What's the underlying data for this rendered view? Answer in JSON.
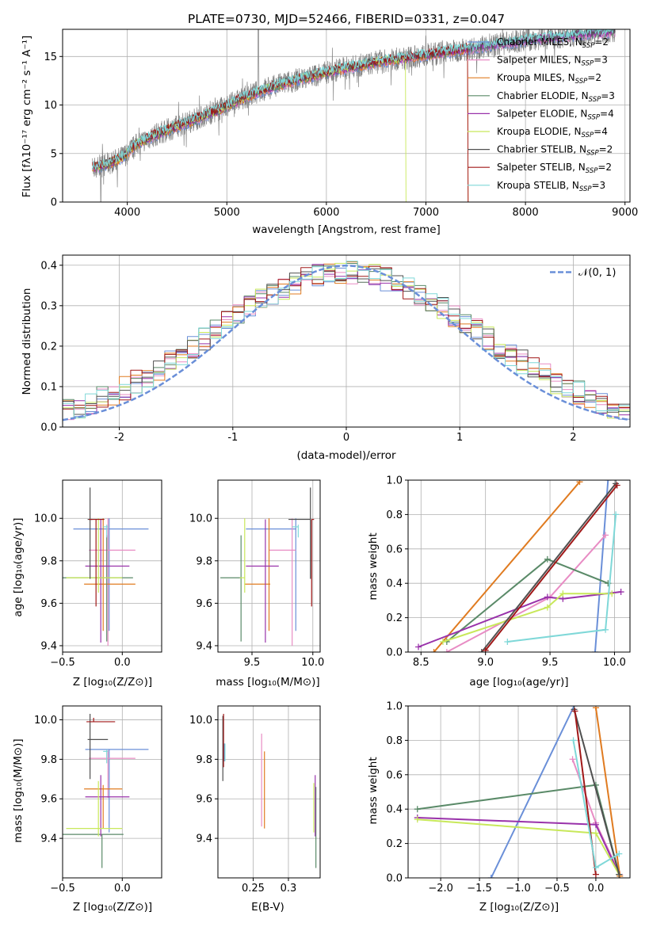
{
  "panels": {
    "spectrum": {
      "title": "PLATE=0730, MJD=52466, FIBERID=0331, z=0.047",
      "xlabel": "wavelength [Angstrom, rest frame]",
      "ylabel": "Flux [fλ10⁻¹⁷ erg cm⁻² s⁻¹ A⁻¹]",
      "xlim": [
        3350,
        9050
      ],
      "ylim": [
        0,
        17.8
      ],
      "xticks": [
        4000,
        5000,
        6000,
        7000,
        8000,
        9000
      ],
      "yticks": [
        0,
        5,
        10,
        15
      ]
    },
    "residuals": {
      "xlabel": "(data-model)/error",
      "ylabel": "Normed distribution",
      "xlim": [
        -2.5,
        2.5
      ],
      "ylim": [
        0,
        0.425
      ],
      "xticks": [
        -2,
        -1,
        0,
        1,
        2
      ],
      "yticks": [
        0.0,
        0.1,
        0.2,
        0.3,
        0.4
      ],
      "normal_label": "𝒩(0, 1)"
    },
    "age_vs_Z": {
      "xlabel": "Z [log₁₀(Z/Z⊙)]",
      "ylabel": "age  [log₁₀(age/yr)]"
    },
    "age_vs_mass": {
      "xlabel": "mass [log₁₀(M/M⊙)]"
    },
    "weight_vs_age": {
      "xlabel": "age  [log₁₀(age/yr)]",
      "ylabel": "mass weight"
    },
    "mass_vs_Z": {
      "xlabel": "Z [log₁₀(Z/Z⊙)]",
      "ylabel": "mass [log₁₀(M/M⊙)]"
    },
    "mass_vs_ebv": {
      "xlabel": "E(B-V)"
    },
    "weight_vs_Z": {
      "xlabel": "Z [log₁₀(Z/Z⊙)]",
      "ylabel": "mass weight"
    }
  },
  "chart_data": [
    {
      "type": "line",
      "title": "PLATE=0730, MJD=52466, FIBERID=0331, z=0.047",
      "xlabel": "wavelength [Angstrom, rest frame]",
      "ylabel": "Flux [fλ10⁻¹⁷ erg cm⁻² s⁻¹ A⁻¹]",
      "xlim": [
        3350,
        9050
      ],
      "ylim": [
        0,
        17.8
      ],
      "legend_position": "right",
      "data_color": "#808080",
      "data_trend": {
        "x": [
          3650,
          3800,
          3950,
          4100,
          4300,
          4500,
          4700,
          4900,
          5100,
          5300,
          5500,
          5700,
          5900,
          6100,
          6300,
          6500,
          6700,
          6900,
          7100,
          7300,
          7500,
          7700,
          7900,
          8100,
          8300,
          8500,
          8700,
          8900
        ],
        "y": [
          3.5,
          3.9,
          4.6,
          6.0,
          7.0,
          7.8,
          8.6,
          9.4,
          10.4,
          11.3,
          12.0,
          12.6,
          13.1,
          13.6,
          14.0,
          14.4,
          14.7,
          15.0,
          15.3,
          15.6,
          15.9,
          16.2,
          16.5,
          16.8,
          17.0,
          17.2,
          17.4,
          17.6
        ]
      },
      "series": [
        {
          "name": "Chabrier MILES",
          "nssp": "2",
          "color": "#6a8fd8",
          "drop": null
        },
        {
          "name": "Salpeter MILES",
          "nssp": "3",
          "color": "#e88cc4",
          "drop": null
        },
        {
          "name": "Kroupa MILES",
          "nssp": "2",
          "color": "#e07b20",
          "drop": 7420
        },
        {
          "name": "Chabrier ELODIE",
          "nssp": "3",
          "color": "#5a8a68",
          "drop": null
        },
        {
          "name": "Salpeter ELODIE",
          "nssp": "4",
          "color": "#9932aa",
          "drop": null
        },
        {
          "name": "Kroupa ELODIE",
          "nssp": "4",
          "color": "#c8e85a",
          "drop": 6800
        },
        {
          "name": "Chabrier STELIB",
          "nssp": "2",
          "color": "#505050",
          "drop": null
        },
        {
          "name": "Salpeter STELIB",
          "nssp": "2",
          "color": "#a01818",
          "drop": 7420
        },
        {
          "name": "Kroupa STELIB",
          "nssp": "3",
          "color": "#7fd8d8",
          "drop": null
        }
      ]
    },
    {
      "type": "histogram",
      "xlabel": "(data-model)/error",
      "ylabel": "Normed distribution",
      "xlim": [
        -2.5,
        2.5
      ],
      "ylim": [
        0,
        0.425
      ],
      "bin_width": 0.1,
      "reference_curve": {
        "name": "𝒩(0, 1)",
        "mean": 0,
        "sigma": 1,
        "color": "#6a8fd8"
      },
      "hist_colors": [
        "#6a8fd8",
        "#e88cc4",
        "#e07b20",
        "#5a8a68",
        "#9932aa",
        "#c8e85a",
        "#505050",
        "#a01818",
        "#7fd8d8"
      ]
    },
    {
      "type": "errorbar",
      "xlabel": "Z [log₁₀(Z/Z⊙)]",
      "ylabel": "age  [log₁₀(age/yr)]",
      "xlim": [
        -0.5,
        0.33
      ],
      "ylim": [
        9.37,
        10.18
      ],
      "xticks": [
        -0.5,
        0.0
      ],
      "yticks": [
        9.4,
        9.6,
        9.8,
        10.0
      ],
      "points": [
        {
          "color": "#6a8fd8",
          "x": -0.11,
          "xerr": [
            0.3,
            0.33
          ],
          "y": 9.95,
          "yerr": [
            0.48,
            0.05
          ]
        },
        {
          "color": "#e88cc4",
          "x": -0.12,
          "xerr": [
            0.16,
            0.23
          ],
          "y": 9.85,
          "yerr": [
            0.45,
            0.15
          ]
        },
        {
          "color": "#e07b20",
          "x": -0.16,
          "xerr": [
            0.16,
            0.27
          ],
          "y": 9.69,
          "yerr": [
            0.22,
            0.31
          ]
        },
        {
          "color": "#5a8a68",
          "x": -0.13,
          "xerr": [
            0.37,
            0.22
          ],
          "y": 9.72,
          "yerr": [
            0.3,
            0.2
          ]
        },
        {
          "color": "#9932aa",
          "x": -0.18,
          "xerr": [
            0.13,
            0.24
          ],
          "y": 9.775,
          "yerr": [
            0.36,
            0.22
          ]
        },
        {
          "color": "#c8e85a",
          "x": -0.2,
          "xerr": [
            0.27,
            0.2
          ],
          "y": 9.72,
          "yerr": [
            0.07,
            0.28
          ]
        },
        {
          "color": "#505050",
          "x": -0.27,
          "xerr": [
            0.02,
            0.02
          ],
          "y": 9.995,
          "yerr": [
            0.28,
            0.15
          ]
        },
        {
          "color": "#a01818",
          "x": -0.22,
          "xerr": [
            0.06,
            0.07
          ],
          "y": 9.995,
          "yerr": [
            0.41,
            0.0
          ]
        },
        {
          "color": "#7fd8d8",
          "x": -0.13,
          "xerr": [
            0.03,
            0.01
          ],
          "y": 9.96,
          "yerr": [
            0.05,
            0.01
          ]
        }
      ]
    },
    {
      "type": "errorbar",
      "xlabel": "mass [log₁₀(M/M⊙)]",
      "ylabel": "",
      "xlim": [
        9.22,
        10.06
      ],
      "ylim": [
        9.37,
        10.18
      ],
      "xticks": [
        9.5,
        10.0
      ],
      "yticks": [
        9.4,
        9.6,
        9.8,
        10.0
      ],
      "points": [
        {
          "color": "#6a8fd8",
          "x": 9.86,
          "xerr": [
            0.41,
            0.0
          ],
          "y": 9.95,
          "yerr": [
            0.48,
            0.05
          ]
        },
        {
          "color": "#e88cc4",
          "x": 9.83,
          "xerr": [
            0.19,
            0.03
          ],
          "y": 9.85,
          "yerr": [
            0.45,
            0.15
          ]
        },
        {
          "color": "#e07b20",
          "x": 9.64,
          "xerr": [
            0.2,
            0.01
          ],
          "y": 9.69,
          "yerr": [
            0.22,
            0.31
          ]
        },
        {
          "color": "#5a8a68",
          "x": 9.41,
          "xerr": [
            0.17,
            0.0
          ],
          "y": 9.72,
          "yerr": [
            0.3,
            0.2
          ]
        },
        {
          "color": "#9932aa",
          "x": 9.61,
          "xerr": [
            0.16,
            0.11
          ],
          "y": 9.775,
          "yerr": [
            0.36,
            0.22
          ]
        },
        {
          "color": "#c8e85a",
          "x": 9.44,
          "xerr": [
            0.04,
            0.0
          ],
          "y": 9.72,
          "yerr": [
            0.07,
            0.28
          ]
        },
        {
          "color": "#505050",
          "x": 9.98,
          "xerr": [
            0.18,
            0.0
          ],
          "y": 9.995,
          "yerr": [
            0.28,
            0.15
          ]
        },
        {
          "color": "#a01818",
          "x": 9.99,
          "xerr": [
            0.0,
            0.02
          ],
          "y": 9.995,
          "yerr": [
            0.41,
            0.0
          ]
        },
        {
          "color": "#7fd8d8",
          "x": 9.88,
          "xerr": [
            0.05,
            0.0
          ],
          "y": 9.96,
          "yerr": [
            0.05,
            0.01
          ]
        }
      ]
    },
    {
      "type": "line",
      "xlabel": "age  [log₁₀(age/yr)]",
      "ylabel": "mass weight",
      "xlim": [
        8.4,
        10.12
      ],
      "ylim": [
        0,
        1
      ],
      "xticks": [
        8.5,
        9.0,
        9.5,
        10.0
      ],
      "yticks": [
        0.0,
        0.2,
        0.4,
        0.6,
        0.8,
        1.0
      ],
      "series": [
        {
          "color": "#6a8fd8",
          "x": [
            9.85,
            9.95
          ],
          "y": [
            0.0,
            1.0
          ]
        },
        {
          "color": "#e88cc4",
          "x": [
            8.7,
            9.5,
            9.93
          ],
          "y": [
            0.0,
            0.32,
            0.68
          ]
        },
        {
          "color": "#e07b20",
          "x": [
            8.6,
            9.73
          ],
          "y": [
            0.0,
            0.99
          ]
        },
        {
          "color": "#5a8a68",
          "x": [
            8.7,
            9.48,
            9.95
          ],
          "y": [
            0.06,
            0.54,
            0.4
          ]
        },
        {
          "color": "#9932aa",
          "x": [
            8.48,
            9.48,
            9.6,
            10.05
          ],
          "y": [
            0.03,
            0.32,
            0.31,
            0.35
          ]
        },
        {
          "color": "#c8e85a",
          "x": [
            8.67,
            9.48,
            9.6,
            9.98
          ],
          "y": [
            0.06,
            0.26,
            0.34,
            0.34
          ]
        },
        {
          "color": "#505050",
          "x": [
            8.97,
            10.01
          ],
          "y": [
            0.0,
            0.98
          ]
        },
        {
          "color": "#a01818",
          "x": [
            9.0,
            10.02
          ],
          "y": [
            0.01,
            0.97
          ]
        },
        {
          "color": "#7fd8d8",
          "x": [
            9.17,
            9.93,
            10.01
          ],
          "y": [
            0.06,
            0.13,
            0.8
          ]
        }
      ]
    },
    {
      "type": "errorbar",
      "xlabel": "Z [log₁₀(Z/Z⊙)]",
      "ylabel": "mass [log₁₀(M/M⊙)]",
      "xlim": [
        -0.5,
        0.33
      ],
      "ylim": [
        9.2,
        10.07
      ],
      "xticks": [
        -0.5,
        0.0
      ],
      "yticks": [
        9.4,
        9.6,
        9.8,
        10.0
      ],
      "points": [
        {
          "color": "#6a8fd8",
          "x": -0.11,
          "xerr": [
            0.2,
            0.33
          ],
          "y": 9.85,
          "yerr": [
            0.42,
            0.0
          ]
        },
        {
          "color": "#e88cc4",
          "x": -0.12,
          "xerr": [
            0.16,
            0.23
          ],
          "y": 9.805,
          "yerr": [
            0.2,
            0.04
          ]
        },
        {
          "color": "#e07b20",
          "x": -0.16,
          "xerr": [
            0.16,
            0.16
          ],
          "y": 9.65,
          "yerr": [
            0.2,
            0.02
          ]
        },
        {
          "color": "#5a8a68",
          "x": -0.17,
          "xerr": [
            0.33,
            0.18
          ],
          "y": 9.42,
          "yerr": [
            0.17,
            0.0
          ]
        },
        {
          "color": "#9932aa",
          "x": -0.18,
          "xerr": [
            0.13,
            0.24
          ],
          "y": 9.61,
          "yerr": [
            0.2,
            0.11
          ]
        },
        {
          "color": "#c8e85a",
          "x": -0.2,
          "xerr": [
            0.27,
            0.2
          ],
          "y": 9.45,
          "yerr": [
            0.04,
            0.24
          ]
        },
        {
          "color": "#505050",
          "x": -0.27,
          "xerr": [
            0.02,
            0.15
          ],
          "y": 9.9,
          "yerr": [
            0.2,
            0.13
          ]
        },
        {
          "color": "#a01818",
          "x": -0.24,
          "xerr": [
            0.06,
            0.18
          ],
          "y": 9.99,
          "yerr": [
            0.0,
            0.02
          ]
        },
        {
          "color": "#7fd8d8",
          "x": -0.13,
          "xerr": [
            0.03,
            0.01
          ],
          "y": 9.84,
          "yerr": [
            0.06,
            0.01
          ]
        }
      ]
    },
    {
      "type": "errorbar",
      "xlabel": "E(B-V)",
      "ylabel": "",
      "xlim": [
        0.2,
        0.345
      ],
      "ylim": [
        9.2,
        10.07
      ],
      "xticks": [
        0.25,
        0.3
      ],
      "yticks": [
        9.4,
        9.6,
        9.8,
        10.0
      ],
      "points": [
        {
          "color": "#6a8fd8",
          "x": 0.209,
          "y": 9.84,
          "yerr": [
            0.05,
            0.04
          ]
        },
        {
          "color": "#e88cc4",
          "x": 0.262,
          "y": 9.72,
          "yerr": [
            0.26,
            0.21
          ]
        },
        {
          "color": "#e07b20",
          "x": 0.266,
          "y": 9.65,
          "yerr": [
            0.2,
            0.19
          ]
        },
        {
          "color": "#5a8a68",
          "x": 0.339,
          "y": 9.42,
          "yerr": [
            0.17,
            0.24
          ]
        },
        {
          "color": "#9932aa",
          "x": 0.338,
          "y": 9.62,
          "yerr": [
            0.21,
            0.1
          ]
        },
        {
          "color": "#c8e85a",
          "x": 0.336,
          "y": 9.56,
          "yerr": [
            0.13,
            0.12
          ]
        },
        {
          "color": "#505050",
          "x": 0.207,
          "y": 9.9,
          "yerr": [
            0.21,
            0.12
          ]
        },
        {
          "color": "#a01818",
          "x": 0.208,
          "y": 9.99,
          "yerr": [
            0.23,
            0.04
          ]
        },
        {
          "color": "#7fd8d8",
          "x": 0.21,
          "y": 9.84,
          "yerr": [
            0.05,
            0.04
          ]
        }
      ]
    },
    {
      "type": "line",
      "xlabel": "Z [log₁₀(Z/Z⊙)]",
      "ylabel": "mass weight",
      "xlim": [
        -2.42,
        0.44
      ],
      "ylim": [
        0,
        1
      ],
      "xticks": [
        -2.0,
        -1.5,
        -1.0,
        -0.5,
        0.0
      ],
      "yticks": [
        0.0,
        0.2,
        0.4,
        0.6,
        0.8,
        1.0
      ],
      "series": [
        {
          "color": "#6a8fd8",
          "x": [
            -1.35,
            -0.28
          ],
          "y": [
            0.0,
            1.0
          ]
        },
        {
          "color": "#e88cc4",
          "x": [
            -0.3,
            0.0,
            0.31
          ],
          "y": [
            0.69,
            0.32,
            0.02
          ]
        },
        {
          "color": "#e07b20",
          "x": [
            0.0,
            0.31
          ],
          "y": [
            0.99,
            0.01
          ]
        },
        {
          "color": "#5a8a68",
          "x": [
            -2.3,
            0.0,
            0.3
          ],
          "y": [
            0.4,
            0.54,
            0.02
          ]
        },
        {
          "color": "#9932aa",
          "x": [
            -2.3,
            0.0,
            0.3
          ],
          "y": [
            0.35,
            0.31,
            0.02
          ]
        },
        {
          "color": "#c8e85a",
          "x": [
            -2.3,
            0.0,
            0.3
          ],
          "y": [
            0.34,
            0.26,
            0.02
          ]
        },
        {
          "color": "#505050",
          "x": [
            -0.28,
            0.3
          ],
          "y": [
            0.98,
            0.02
          ]
        },
        {
          "color": "#a01818",
          "x": [
            -0.27,
            0.0
          ],
          "y": [
            0.97,
            0.02
          ]
        },
        {
          "color": "#7fd8d8",
          "x": [
            -0.29,
            0.0,
            0.3
          ],
          "y": [
            0.8,
            0.06,
            0.14
          ]
        }
      ]
    }
  ]
}
